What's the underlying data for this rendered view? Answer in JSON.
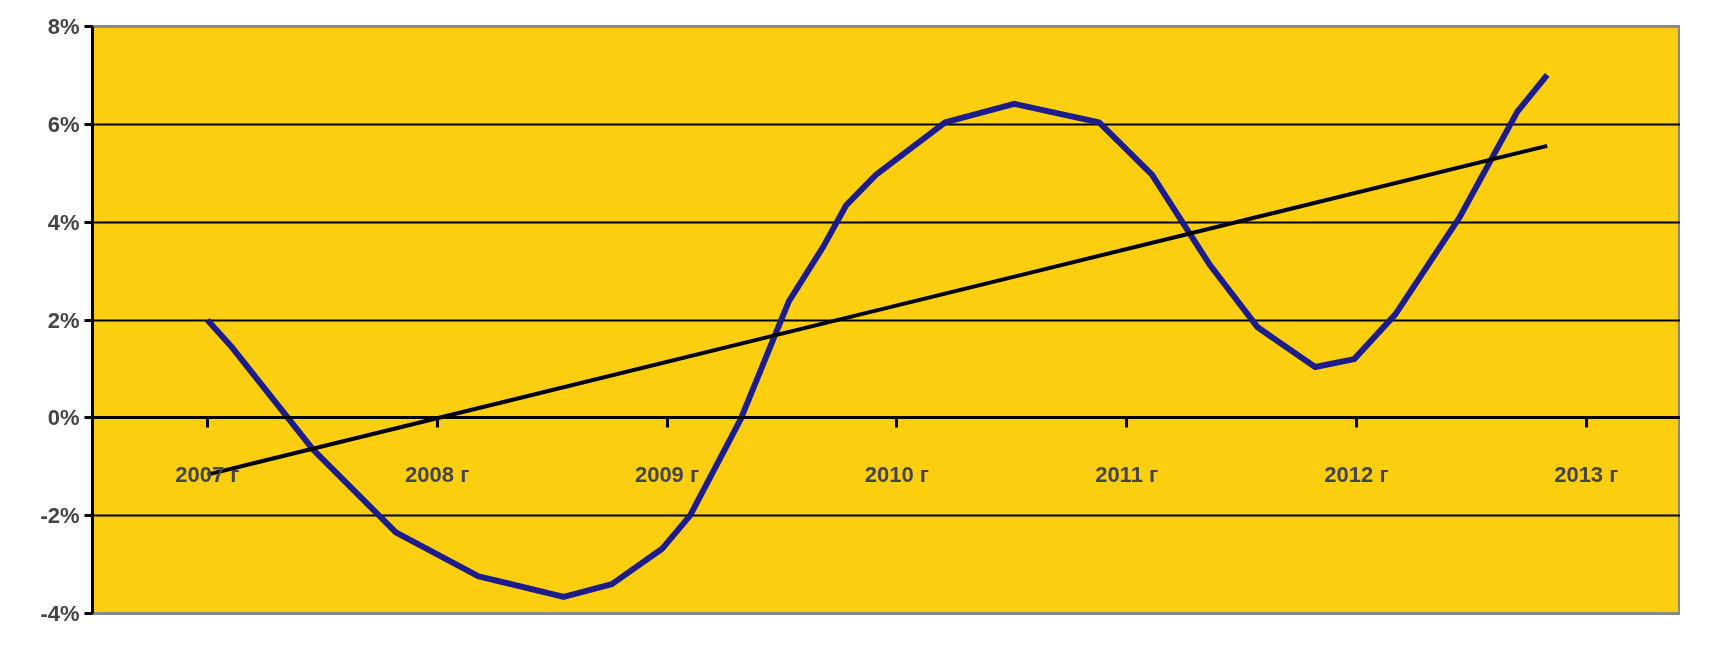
{
  "chart_data": {
    "type": "line",
    "xlim": [
      2006.5,
      2013.41
    ],
    "ylim": [
      -4,
      8
    ],
    "grid": "y",
    "line_style": "solid",
    "xticks": [
      {
        "value": 2007,
        "label": "2007 г"
      },
      {
        "value": 2008,
        "label": "2008 г"
      },
      {
        "value": 2009,
        "label": "2009 г"
      },
      {
        "value": 2010,
        "label": "2010 г"
      },
      {
        "value": 2011,
        "label": "2011 г"
      },
      {
        "value": 2012,
        "label": "2012 г"
      },
      {
        "value": 2013,
        "label": "2013 г"
      }
    ],
    "yticks": [
      {
        "value": -4,
        "label": "-4%"
      },
      {
        "value": -2,
        "label": "-2%"
      },
      {
        "value": 0,
        "label": "0%"
      },
      {
        "value": 2,
        "label": "2%"
      },
      {
        "value": 4,
        "label": "4%"
      },
      {
        "value": 6,
        "label": "6%"
      },
      {
        "value": 8,
        "label": "8%"
      }
    ],
    "series": [
      {
        "color": "#1c1c8a",
        "x": [
          2007,
          2007.1,
          2007.46,
          2007.82,
          2008.18,
          2008.55,
          2008.76,
          2008.98,
          2009.1,
          2009.32,
          2009.53,
          2009.68,
          2009.78,
          2009.91,
          2010.21,
          2010.51,
          2010.88,
          2011.11,
          2011.36,
          2011.57,
          2011.82,
          2011.99,
          2012.17,
          2012.45,
          2012.7,
          2012.83
        ],
        "values": [
          2.0,
          1.48,
          -0.65,
          -2.34,
          -3.24,
          -3.66,
          -3.4,
          -2.67,
          -2.0,
          -0.03,
          2.38,
          3.5,
          4.35,
          4.97,
          6.04,
          6.42,
          6.04,
          4.97,
          3.14,
          1.85,
          1.04,
          1.2,
          2.12,
          4.11,
          6.26,
          7.01
        ]
      },
      {
        "type": "line",
        "color": "#000000",
        "x": [
          2007,
          2012.83
        ],
        "values": [
          -1.16,
          5.56
        ]
      }
    ]
  }
}
